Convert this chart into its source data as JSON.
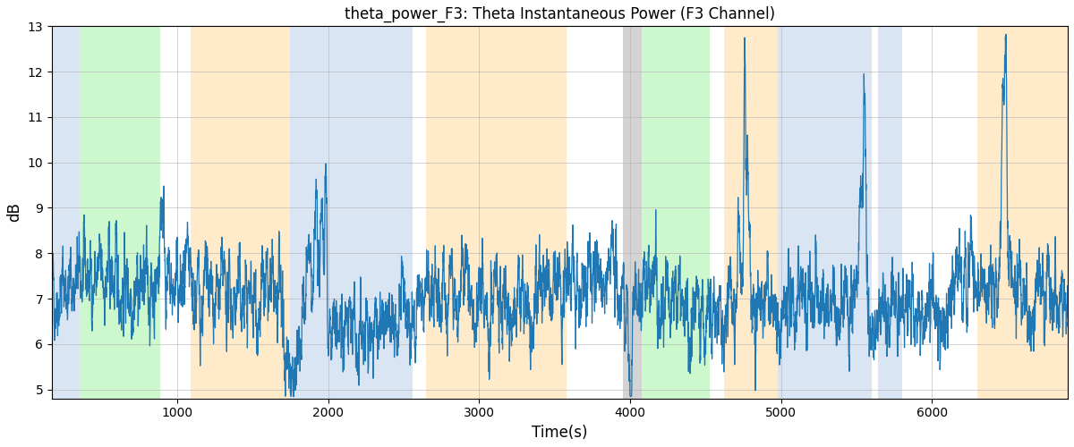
{
  "title": "theta_power_F3: Theta Instantaneous Power (F3 Channel)",
  "xlabel": "Time(s)",
  "ylabel": "dB",
  "ylim": [
    4.8,
    13.0
  ],
  "xlim": [
    170,
    6900
  ],
  "yticks": [
    5,
    6,
    7,
    8,
    9,
    10,
    11,
    12,
    13
  ],
  "xticks": [
    1000,
    2000,
    3000,
    4000,
    5000,
    6000
  ],
  "line_color": "#1f77b4",
  "line_width": 0.9,
  "bg_bands": [
    {
      "start": 170,
      "end": 355,
      "color": "#aec6e8",
      "alpha": 0.45
    },
    {
      "start": 355,
      "end": 890,
      "color": "#90ee90",
      "alpha": 0.45
    },
    {
      "start": 1090,
      "end": 1750,
      "color": "#ffd9a0",
      "alpha": 0.55
    },
    {
      "start": 1750,
      "end": 2560,
      "color": "#aec6e8",
      "alpha": 0.45
    },
    {
      "start": 2650,
      "end": 3580,
      "color": "#ffd9a0",
      "alpha": 0.55
    },
    {
      "start": 3955,
      "end": 4075,
      "color": "#b0b0b0",
      "alpha": 0.55
    },
    {
      "start": 4075,
      "end": 4530,
      "color": "#90ee90",
      "alpha": 0.45
    },
    {
      "start": 4620,
      "end": 4980,
      "color": "#ffd9a0",
      "alpha": 0.55
    },
    {
      "start": 4980,
      "end": 5600,
      "color": "#aec6e8",
      "alpha": 0.45
    },
    {
      "start": 5640,
      "end": 5800,
      "color": "#aec6e8",
      "alpha": 0.45
    },
    {
      "start": 6300,
      "end": 6900,
      "color": "#ffd9a0",
      "alpha": 0.55
    }
  ],
  "seed": 42,
  "n_points": 6700,
  "t_start": 170,
  "t_end": 6900
}
